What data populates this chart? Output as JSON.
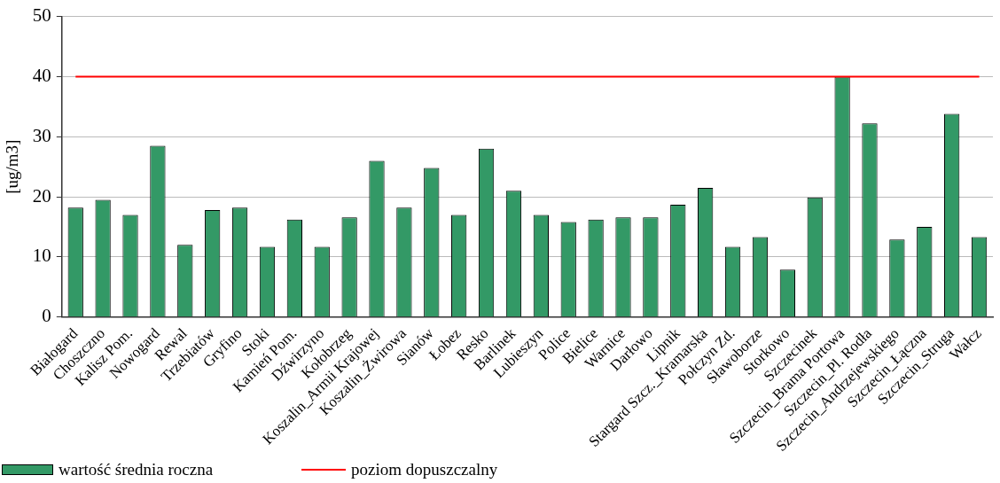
{
  "chart_data": {
    "type": "bar",
    "ylabel": "[ug/m3]",
    "categories": [
      "Białogard",
      "Choszczno",
      "Kalisz Pom.",
      "Nowogard",
      "Rewal",
      "Trzebiatów",
      "Gryfino",
      "Stoki",
      "Kamień Pom.",
      "Dźwirzyno",
      "Kołobrzeg",
      "Koszalin_Armii Krajowej",
      "Koszalin_Żwirowa",
      "Sianów",
      "Łobez",
      "Resko",
      "Barlinek",
      "Lubieszyn",
      "Police",
      "Bielice",
      "Warnice",
      "Darłowo",
      "Lipnik",
      "Stargard Szcz._Kramarska",
      "Połczyn Zd.",
      "Sławoborze",
      "Storkowo",
      "Szczecinek",
      "Szczecin_Brama Portowa",
      "Szczecin_Pl. Rodła",
      "Szczecin_Andrzejewskiego",
      "Szczecin_Łączna",
      "Szczecin_Struga",
      "Wałcz"
    ],
    "series": [
      {
        "name": "wartość średnia roczna",
        "color": "#339966",
        "values": [
          18.2,
          19.5,
          17,
          28.5,
          12,
          17.8,
          18.2,
          11.7,
          16.2,
          11.7,
          16.6,
          26,
          18.2,
          24.8,
          17,
          28,
          21,
          17,
          15.8,
          16.2,
          16.6,
          16.6,
          18.7,
          21.5,
          11.7,
          13.3,
          7.9,
          19.9,
          40,
          32.2,
          12.9,
          15,
          33.8,
          13.3
        ]
      },
      {
        "name": "poziom dopuszczalny",
        "type": "line",
        "color": "#ff0000",
        "marker": "none",
        "values": [
          40,
          40,
          40,
          40,
          40,
          40,
          40,
          40,
          40,
          40,
          40,
          40,
          40,
          40,
          40,
          40,
          40,
          40,
          40,
          40,
          40,
          40,
          40,
          40,
          40,
          40,
          40,
          40,
          40,
          40,
          40,
          40,
          40,
          40
        ]
      }
    ],
    "ylim": [
      0,
      50
    ],
    "yticks": [
      0,
      10,
      20,
      30,
      40,
      50
    ],
    "grid": "y",
    "legend": "bottom left"
  }
}
